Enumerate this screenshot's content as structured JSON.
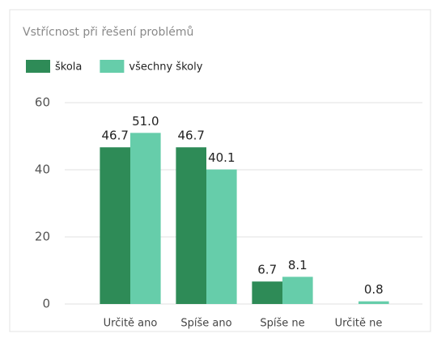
{
  "chart_data": {
    "type": "bar",
    "title": "Vstřícnost při řešení problémů",
    "categories": [
      "Určitě ano",
      "Spíše ano",
      "Spíše ne",
      "Určitě ne"
    ],
    "series": [
      {
        "name": "škola",
        "color": "#2e8b57",
        "values": [
          46.7,
          46.7,
          6.7,
          null
        ]
      },
      {
        "name": "všechny školy",
        "color": "#66cdaa",
        "values": [
          51.0,
          40.1,
          8.1,
          0.8
        ],
        "value_labels": [
          "51.0",
          "40.1",
          "8.1",
          "0.8"
        ]
      }
    ],
    "ylim": [
      0,
      60
    ],
    "yticks": [
      0,
      20,
      40,
      60
    ],
    "grid": true,
    "legend": "top-left"
  }
}
